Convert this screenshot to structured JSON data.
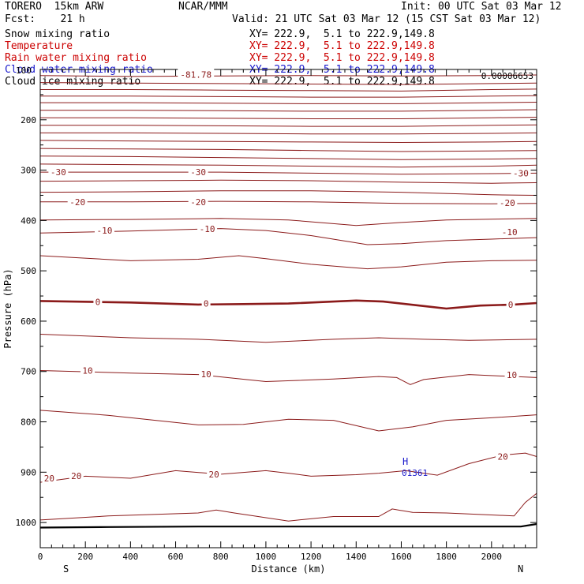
{
  "header": {
    "model": "TORERO  15km ARW",
    "center": "NCAR/MMM",
    "init": "Init: 00 UTC Sat 03 Mar 12",
    "fcst": "Fcst:    21 h",
    "valid": "Valid: 21 UTC Sat 03 Mar 12 (15 CST Sat 03 Mar 12)"
  },
  "fields": [
    {
      "name": "Snow mixing ratio",
      "xy": "XY= 222.9,  5.1 to 222.9,149.8",
      "color": "#000000"
    },
    {
      "name": "Temperature",
      "xy": "XY= 222.9,  5.1 to 222.9,149.8",
      "color": "#cc0000"
    },
    {
      "name": "Rain water mixing ratio",
      "xy": "XY= 222.9,  5.1 to 222.9,149.8",
      "color": "#cc0000"
    },
    {
      "name": "Cloud water mixing ratio",
      "xy": "XY= 222.9,  5.1 to 222.9,149.8",
      "color": "#1a1acc"
    },
    {
      "name": "Cloud ice mixing ratio",
      "xy": "XY= 222.9,  5.1 to 222.9,149.8",
      "color": "#000000"
    }
  ],
  "chart_data": {
    "type": "line",
    "title": "",
    "xlabel": "Distance (km)",
    "ylabel": "Pressure (hPa)",
    "xlim": [
      0,
      2200
    ],
    "ylim": [
      1050,
      100
    ],
    "x_ticks": [
      0,
      200,
      400,
      600,
      800,
      1000,
      1200,
      1400,
      1600,
      1800,
      2000
    ],
    "y_ticks": [
      200,
      300,
      400,
      500,
      600,
      700,
      800,
      900,
      1000
    ],
    "endpoint_labels": {
      "left": "S",
      "right": "N"
    },
    "corner_label": "100",
    "top_right_label": "0.00006653",
    "temperature_color": "#8b1a1a",
    "high_marker": {
      "label": "H",
      "value": "01361",
      "x": 1660,
      "p": 895,
      "color": "#1a1acc"
    },
    "isotherm_labels": [
      {
        "text": "-81.78",
        "x": 690,
        "p": 110
      },
      {
        "text": "-30",
        "x": 80,
        "p": 304
      },
      {
        "text": "-30",
        "x": 700,
        "p": 304
      },
      {
        "text": "-30",
        "x": 2130,
        "p": 306
      },
      {
        "text": "-20",
        "x": 165,
        "p": 363
      },
      {
        "text": "-20",
        "x": 700,
        "p": 363
      },
      {
        "text": "-20",
        "x": 2070,
        "p": 365
      },
      {
        "text": "-10",
        "x": 285,
        "p": 420
      },
      {
        "text": "-10",
        "x": 740,
        "p": 417
      },
      {
        "text": "-10",
        "x": 2080,
        "p": 423
      },
      {
        "text": "0",
        "x": 255,
        "p": 562
      },
      {
        "text": "0",
        "x": 735,
        "p": 565
      },
      {
        "text": "0",
        "x": 2085,
        "p": 567
      },
      {
        "text": "10",
        "x": 210,
        "p": 698
      },
      {
        "text": "10",
        "x": 735,
        "p": 705
      },
      {
        "text": "10",
        "x": 2090,
        "p": 707
      },
      {
        "text": "20",
        "x": 40,
        "p": 912
      },
      {
        "text": "20",
        "x": 160,
        "p": 907
      },
      {
        "text": "20",
        "x": 770,
        "p": 904
      },
      {
        "text": "20",
        "x": 2050,
        "p": 869
      }
    ],
    "series": [
      {
        "values": [
          [
            0,
            112
          ],
          [
            400,
            114
          ],
          [
            800,
            113
          ],
          [
            1200,
            112
          ],
          [
            1600,
            113
          ],
          [
            2000,
            112
          ],
          [
            2200,
            111
          ]
        ]
      },
      {
        "values": [
          [
            0,
            126
          ],
          [
            400,
            127
          ],
          [
            800,
            128
          ],
          [
            1200,
            129
          ],
          [
            1600,
            130
          ],
          [
            2000,
            128
          ],
          [
            2200,
            127
          ]
        ]
      },
      {
        "values": [
          [
            0,
            140
          ],
          [
            400,
            140
          ],
          [
            800,
            141
          ],
          [
            1200,
            142
          ],
          [
            1600,
            143
          ],
          [
            2000,
            140
          ],
          [
            2200,
            139
          ]
        ]
      },
      {
        "values": [
          [
            0,
            153
          ],
          [
            400,
            153
          ],
          [
            800,
            154
          ],
          [
            1200,
            155
          ],
          [
            1600,
            155
          ],
          [
            2000,
            153
          ],
          [
            2200,
            152
          ]
        ]
      },
      {
        "values": [
          [
            0,
            166
          ],
          [
            400,
            166
          ],
          [
            800,
            167
          ],
          [
            1200,
            168
          ],
          [
            1600,
            168
          ],
          [
            2000,
            166
          ],
          [
            2200,
            165
          ]
        ]
      },
      {
        "values": [
          [
            0,
            181
          ],
          [
            400,
            181
          ],
          [
            800,
            182
          ],
          [
            1200,
            183
          ],
          [
            1600,
            183
          ],
          [
            2000,
            181
          ],
          [
            2200,
            180
          ]
        ]
      },
      {
        "values": [
          [
            0,
            196
          ],
          [
            400,
            196
          ],
          [
            800,
            197
          ],
          [
            1200,
            198
          ],
          [
            1600,
            198
          ],
          [
            2000,
            196
          ],
          [
            2200,
            195
          ]
        ]
      },
      {
        "values": [
          [
            0,
            211
          ],
          [
            400,
            211
          ],
          [
            800,
            212
          ],
          [
            1200,
            213
          ],
          [
            1600,
            213
          ],
          [
            2000,
            211
          ],
          [
            2200,
            210
          ]
        ]
      },
      {
        "values": [
          [
            0,
            226
          ],
          [
            400,
            226
          ],
          [
            800,
            227
          ],
          [
            1200,
            228
          ],
          [
            1600,
            228
          ],
          [
            2000,
            227
          ],
          [
            2200,
            226
          ]
        ]
      },
      {
        "values": [
          [
            0,
            241
          ],
          [
            400,
            242
          ],
          [
            800,
            243
          ],
          [
            1200,
            244
          ],
          [
            1600,
            245
          ],
          [
            2000,
            244
          ],
          [
            2200,
            243
          ]
        ]
      },
      {
        "values": [
          [
            0,
            257
          ],
          [
            400,
            258
          ],
          [
            800,
            259
          ],
          [
            1200,
            261
          ],
          [
            1600,
            263
          ],
          [
            2000,
            262
          ],
          [
            2200,
            261
          ]
        ]
      },
      {
        "values": [
          [
            0,
            272
          ],
          [
            400,
            273
          ],
          [
            800,
            275
          ],
          [
            1200,
            277
          ],
          [
            1600,
            279
          ],
          [
            2000,
            278
          ],
          [
            2200,
            277
          ]
        ]
      },
      {
        "values": [
          [
            0,
            288
          ],
          [
            400,
            289
          ],
          [
            800,
            290
          ],
          [
            1200,
            292
          ],
          [
            1600,
            294
          ],
          [
            2000,
            292
          ],
          [
            2200,
            290
          ]
        ]
      },
      {
        "values": [
          [
            0,
            304
          ],
          [
            400,
            304
          ],
          [
            800,
            304
          ],
          [
            1200,
            306
          ],
          [
            1600,
            308
          ],
          [
            2000,
            307
          ],
          [
            2200,
            306
          ]
        ]
      },
      {
        "values": [
          [
            0,
            322
          ],
          [
            400,
            321
          ],
          [
            800,
            320
          ],
          [
            1200,
            321
          ],
          [
            1600,
            324
          ],
          [
            2000,
            326
          ],
          [
            2200,
            325
          ]
        ]
      },
      {
        "values": [
          [
            0,
            344
          ],
          [
            400,
            343
          ],
          [
            800,
            341
          ],
          [
            1200,
            341
          ],
          [
            1600,
            344
          ],
          [
            2000,
            349
          ],
          [
            2200,
            350
          ]
        ]
      },
      {
        "values": [
          [
            0,
            363
          ],
          [
            400,
            363
          ],
          [
            800,
            362
          ],
          [
            1200,
            363
          ],
          [
            1600,
            366
          ],
          [
            2000,
            367
          ],
          [
            2200,
            366
          ]
        ]
      },
      {
        "values": [
          [
            0,
            399
          ],
          [
            400,
            398
          ],
          [
            800,
            396
          ],
          [
            1100,
            399
          ],
          [
            1400,
            410
          ],
          [
            1600,
            404
          ],
          [
            1800,
            399
          ],
          [
            2200,
            396
          ]
        ]
      },
      {
        "values": [
          [
            0,
            425
          ],
          [
            400,
            421
          ],
          [
            800,
            416
          ],
          [
            1000,
            420
          ],
          [
            1200,
            430
          ],
          [
            1450,
            448
          ],
          [
            1600,
            446
          ],
          [
            1800,
            440
          ],
          [
            2000,
            437
          ],
          [
            2200,
            434
          ]
        ]
      },
      {
        "values": [
          [
            0,
            470
          ],
          [
            400,
            480
          ],
          [
            700,
            477
          ],
          [
            880,
            470
          ],
          [
            1000,
            476
          ],
          [
            1200,
            487
          ],
          [
            1450,
            496
          ],
          [
            1600,
            492
          ],
          [
            1800,
            483
          ],
          [
            2000,
            480
          ],
          [
            2200,
            479
          ]
        ]
      },
      {
        "values": [
          [
            0,
            560
          ],
          [
            400,
            563
          ],
          [
            700,
            567
          ],
          [
            900,
            566
          ],
          [
            1100,
            565
          ],
          [
            1400,
            559
          ],
          [
            1520,
            561
          ],
          [
            1700,
            570
          ],
          [
            1800,
            575
          ],
          [
            1950,
            569
          ],
          [
            2100,
            567
          ],
          [
            2200,
            564
          ]
        ]
      },
      {
        "values": [
          [
            0,
            626
          ],
          [
            400,
            633
          ],
          [
            700,
            636
          ],
          [
            1000,
            642
          ],
          [
            1300,
            636
          ],
          [
            1500,
            633
          ],
          [
            1700,
            636
          ],
          [
            1900,
            638
          ],
          [
            2200,
            636
          ]
        ]
      },
      {
        "values": [
          [
            0,
            698
          ],
          [
            400,
            703
          ],
          [
            700,
            706
          ],
          [
            1000,
            720
          ],
          [
            1300,
            715
          ],
          [
            1500,
            710
          ],
          [
            1580,
            712
          ],
          [
            1640,
            726
          ],
          [
            1700,
            716
          ],
          [
            1900,
            706
          ],
          [
            2200,
            712
          ]
        ]
      },
      {
        "values": [
          [
            0,
            777
          ],
          [
            300,
            787
          ],
          [
            700,
            806
          ],
          [
            900,
            805
          ],
          [
            1100,
            795
          ],
          [
            1300,
            797
          ],
          [
            1500,
            818
          ],
          [
            1650,
            810
          ],
          [
            1800,
            797
          ],
          [
            2000,
            792
          ],
          [
            2200,
            786
          ]
        ]
      },
      {
        "values": [
          [
            0,
            920
          ],
          [
            200,
            908
          ],
          [
            400,
            912
          ],
          [
            600,
            897
          ],
          [
            800,
            904
          ],
          [
            1000,
            897
          ],
          [
            1100,
            902
          ],
          [
            1200,
            908
          ],
          [
            1400,
            905
          ],
          [
            1500,
            902
          ],
          [
            1620,
            897
          ],
          [
            1760,
            906
          ],
          [
            1900,
            883
          ],
          [
            2050,
            866
          ],
          [
            2150,
            862
          ],
          [
            2200,
            869
          ]
        ]
      },
      {
        "values": [
          [
            0,
            995
          ],
          [
            300,
            987
          ],
          [
            700,
            981
          ],
          [
            780,
            975
          ],
          [
            860,
            981
          ],
          [
            1100,
            997
          ],
          [
            1300,
            988
          ],
          [
            1500,
            988
          ],
          [
            1560,
            973
          ],
          [
            1650,
            980
          ],
          [
            1800,
            981
          ],
          [
            2000,
            985
          ],
          [
            2100,
            987
          ],
          [
            2150,
            960
          ],
          [
            2200,
            942
          ]
        ]
      }
    ],
    "terrain": [
      [
        0,
        1010
      ],
      [
        300,
        1009
      ],
      [
        700,
        1008
      ],
      [
        1100,
        1008
      ],
      [
        1500,
        1008
      ],
      [
        1900,
        1008
      ],
      [
        2130,
        1008
      ],
      [
        2200,
        1003
      ]
    ]
  }
}
